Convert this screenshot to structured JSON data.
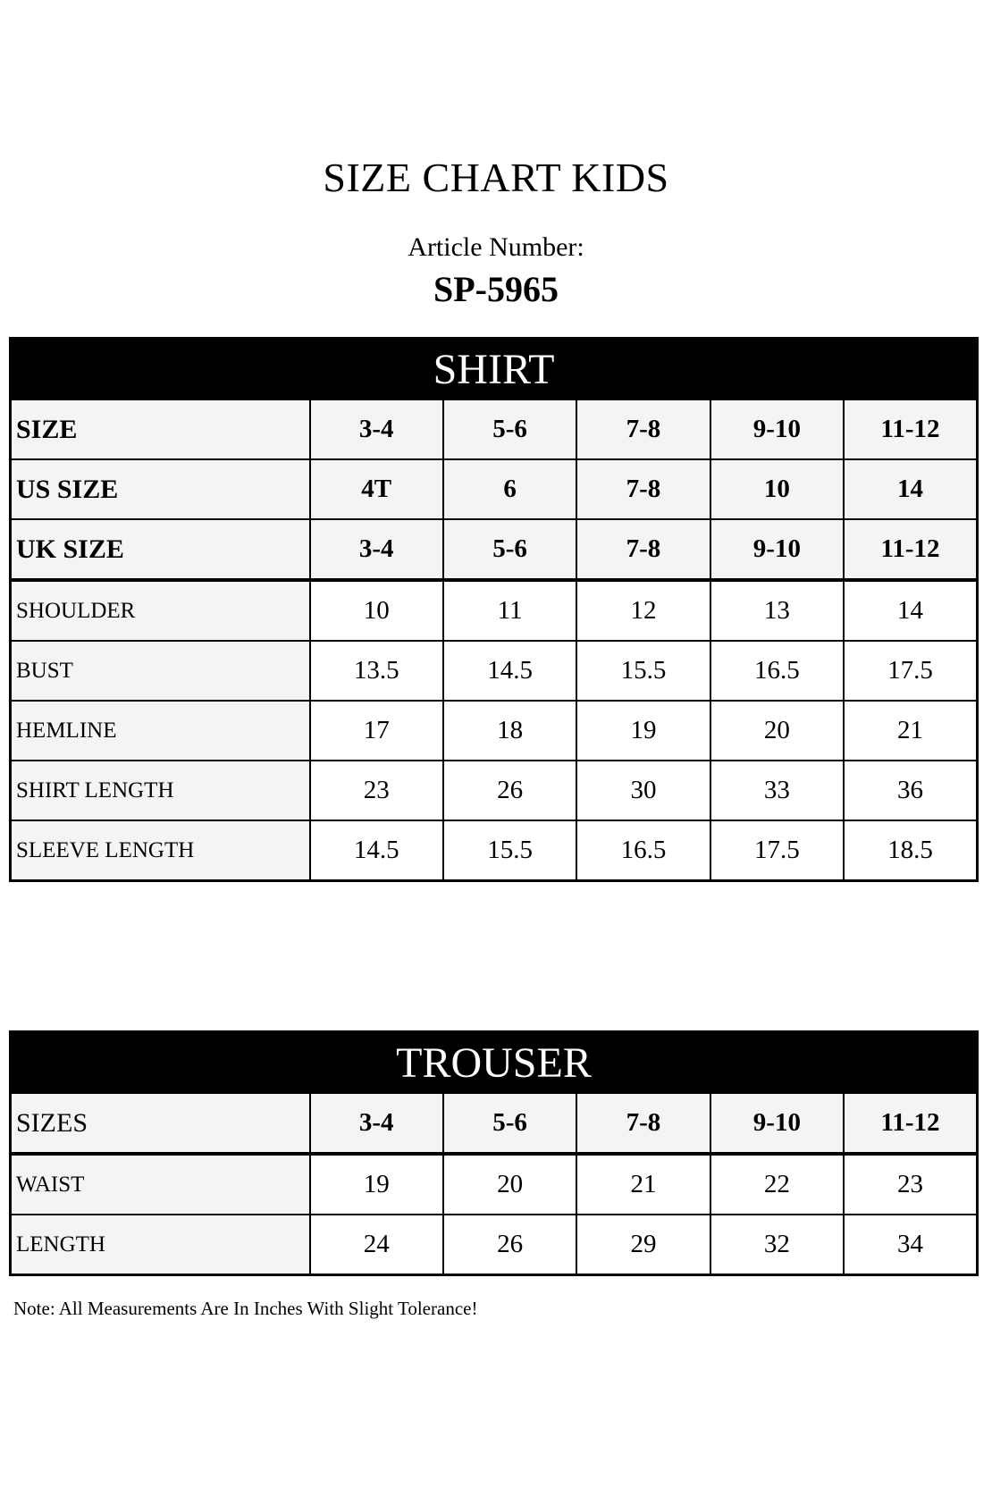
{
  "title": "SIZE CHART KIDS",
  "article_label": "Article Number:",
  "article_number": "SP-5965",
  "shirt": {
    "heading": "SHIRT",
    "header_rows": [
      {
        "label": "SIZE",
        "values": [
          "3-4",
          "5-6",
          "7-8",
          "9-10",
          "11-12"
        ]
      },
      {
        "label": "US SIZE",
        "values": [
          "4T",
          "6",
          "7-8",
          "10",
          "14"
        ]
      },
      {
        "label": "UK SIZE",
        "values": [
          "3-4",
          "5-6",
          "7-8",
          "9-10",
          "11-12"
        ]
      }
    ],
    "rows": [
      {
        "label": "SHOULDER",
        "values": [
          "10",
          "11",
          "12",
          "13",
          "14"
        ]
      },
      {
        "label": "BUST",
        "values": [
          "13.5",
          "14.5",
          "15.5",
          "16.5",
          "17.5"
        ]
      },
      {
        "label": "HEMLINE",
        "values": [
          "17",
          "18",
          "19",
          "20",
          "21"
        ]
      },
      {
        "label": "SHIRT LENGTH",
        "values": [
          "23",
          "26",
          "30",
          "33",
          "36"
        ]
      },
      {
        "label": "SLEEVE LENGTH",
        "values": [
          "14.5",
          "15.5",
          "16.5",
          "17.5",
          "18.5"
        ]
      }
    ]
  },
  "trouser": {
    "heading": "TROUSER",
    "header_rows": [
      {
        "label": "SIZES",
        "values": [
          "3-4",
          "5-6",
          "7-8",
          "9-10",
          "11-12"
        ]
      }
    ],
    "rows": [
      {
        "label": "WAIST",
        "values": [
          "19",
          "20",
          "21",
          "22",
          "23"
        ]
      },
      {
        "label": "LENGTH",
        "values": [
          "24",
          "26",
          "29",
          "32",
          "34"
        ]
      }
    ]
  },
  "note": "Note: All Measurements Are In Inches With Slight Tolerance!"
}
